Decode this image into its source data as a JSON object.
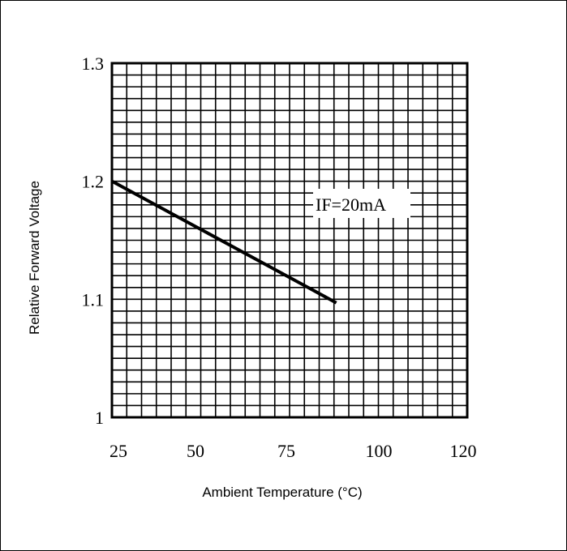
{
  "chart_data": {
    "type": "line",
    "title": "",
    "xlabel": "Ambient Temperature (°C)",
    "ylabel": "Relative Forward Voltage",
    "xlim": [
      25,
      120
    ],
    "ylim": [
      1.0,
      1.3
    ],
    "x_ticks": [
      "25",
      "50",
      "75",
      "100",
      "120"
    ],
    "y_ticks": [
      "1",
      "1.1",
      "1.2",
      "1.3"
    ],
    "grid": true,
    "annotation": "IF=20mA",
    "series": [
      {
        "x": [
          25,
          85
        ],
        "y": [
          1.2,
          1.097
        ]
      }
    ]
  }
}
